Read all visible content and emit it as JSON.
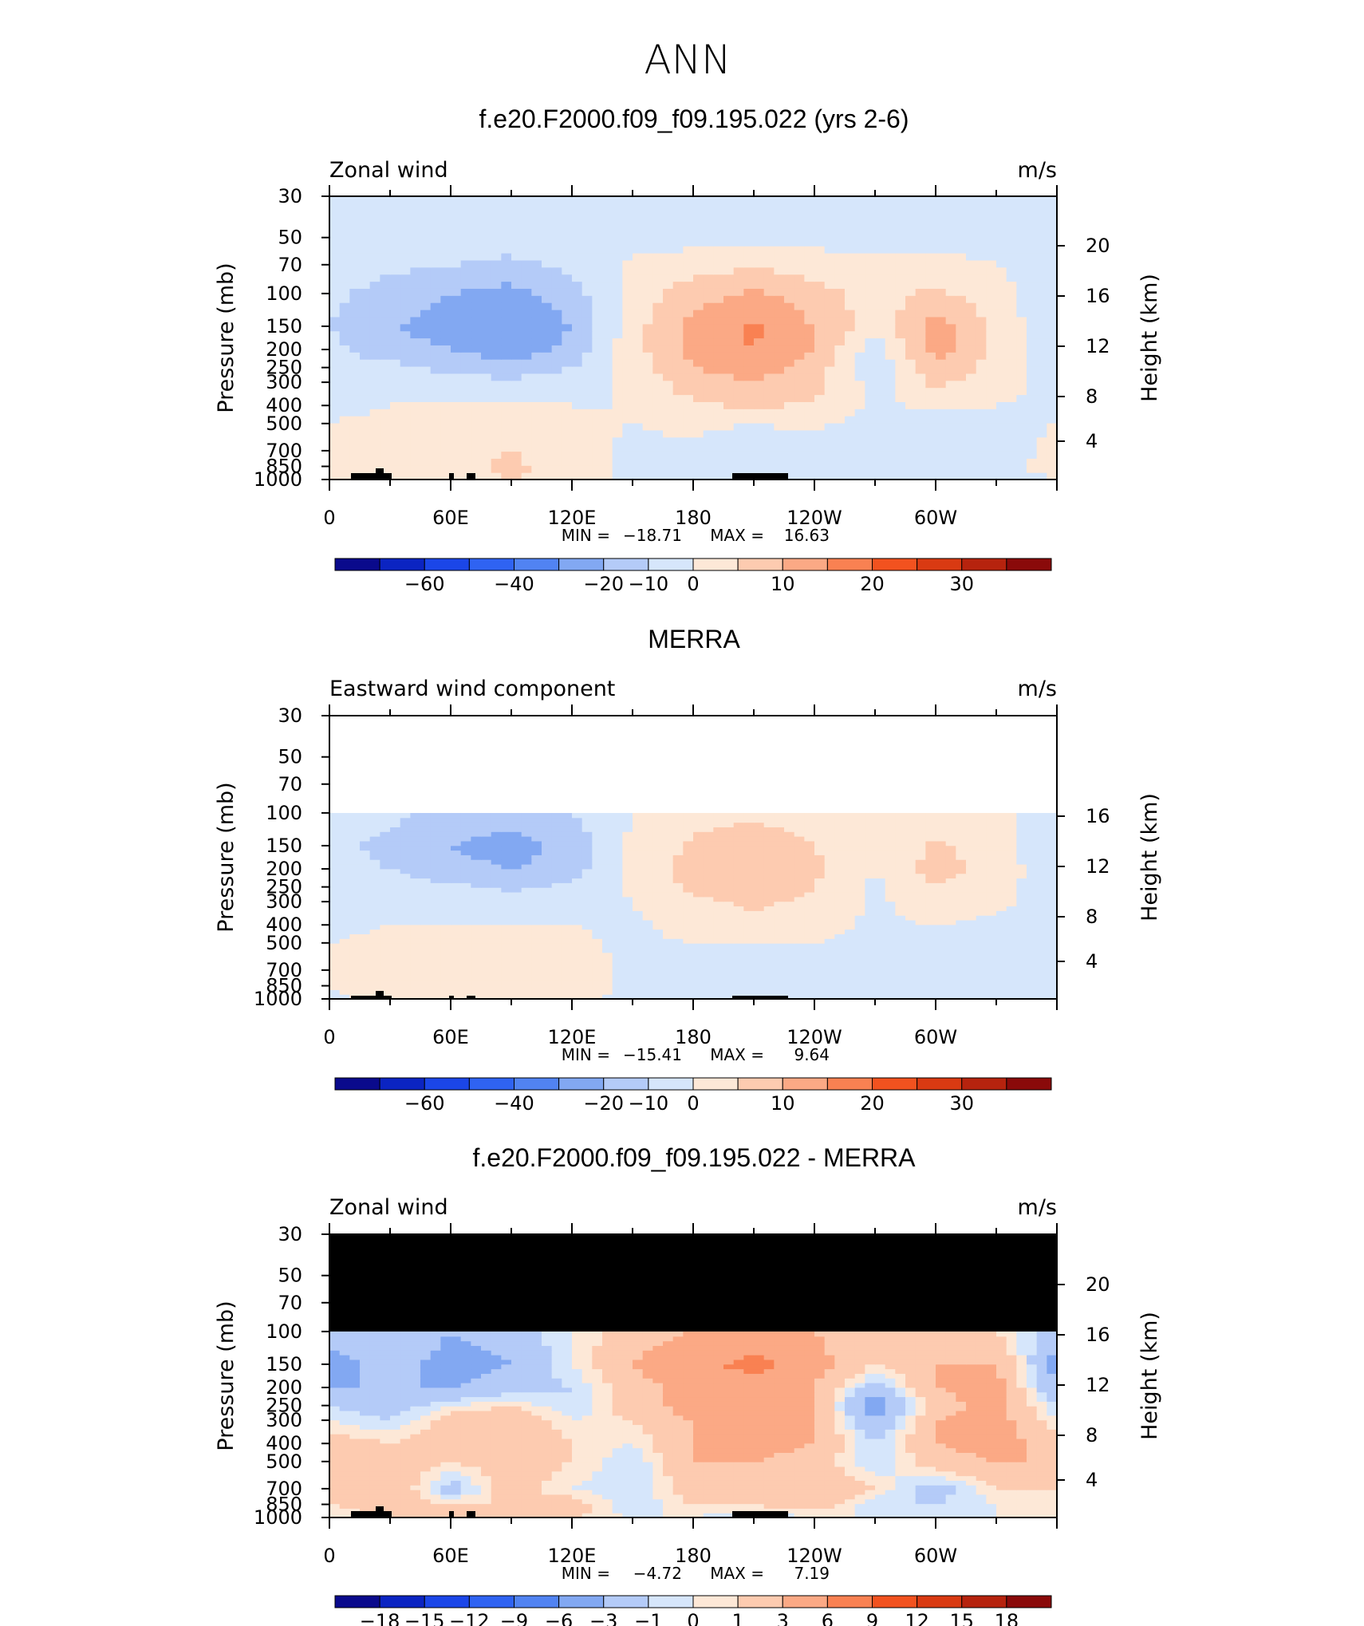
{
  "figure": {
    "title": "ANN"
  },
  "colorbar_colors": [
    "#0a0a8c",
    "#0b24c2",
    "#1b46e8",
    "#2f63f2",
    "#5183f2",
    "#82a8f2",
    "#b4cbf8",
    "#d6e6fb",
    "#fde8d7",
    "#fdcbb0",
    "#fba985",
    "#f98152",
    "#f2521f",
    "#d93a12",
    "#b6230e",
    "#8a0a0a"
  ],
  "chart_data": [
    {
      "type": "heatmap",
      "title": "f.e20.F2000.f09_f09.195.022 (yrs 2-6)",
      "left_label": "Zonal wind",
      "right_label": "m/s",
      "ylabel": "Pressure (mb)",
      "ylabel_right": "Height (km)",
      "x_ticks": [
        "0",
        "60E",
        "120E",
        "180",
        "120W",
        "60W"
      ],
      "y_ticks": [
        "30",
        "50",
        "70",
        "100",
        "150",
        "200",
        "250",
        "300",
        "400",
        "500",
        "700",
        "850",
        "1000"
      ],
      "height_ticks": [
        "20",
        "16",
        "12",
        "8",
        "4"
      ],
      "stats": {
        "min_label": "MIN =",
        "min": "−18.71",
        "max_label": "MAX =",
        "max": "16.63"
      },
      "colorbar_labels": [
        "−60",
        "−40",
        "−20",
        "−10",
        "0",
        "10",
        "20",
        "30"
      ],
      "field": {
        "x_lon": [
          0,
          30,
          60,
          90,
          120,
          150,
          180,
          210,
          240,
          270,
          300,
          330,
          360
        ],
        "p_levels": [
          1000,
          850,
          700,
          500,
          400,
          300,
          250,
          200,
          150,
          100,
          70,
          50,
          30
        ],
        "values": [
          [
            0,
            2,
            3,
            5,
            2,
            -1,
            -2,
            -2,
            -1,
            -1,
            -2,
            -1,
            0
          ],
          [
            1,
            3,
            4,
            6,
            3,
            -1,
            -2,
            -4,
            -2,
            -2,
            -3,
            -1,
            1
          ],
          [
            1,
            2,
            3,
            5,
            2,
            -1,
            -1,
            -3,
            -2,
            -3,
            -4,
            -2,
            1
          ],
          [
            0,
            1,
            1,
            3,
            1,
            0,
            1,
            0,
            1,
            -2,
            -3,
            -1,
            0
          ],
          [
            -1,
            0,
            1,
            1,
            0,
            0,
            4,
            6,
            4,
            -1,
            1,
            0,
            -1
          ],
          [
            -2,
            -2,
            -3,
            -4,
            -2,
            1,
            8,
            10,
            7,
            -2,
            6,
            2,
            -2
          ],
          [
            -3,
            -4,
            -6,
            -8,
            -5,
            2,
            10,
            12,
            8,
            -4,
            9,
            3,
            -3
          ],
          [
            -4,
            -7,
            -10,
            -13,
            -8,
            3,
            12,
            15,
            10,
            -3,
            12,
            4,
            -4
          ],
          [
            -5,
            -9,
            -14,
            -17,
            -10,
            3,
            12,
            16,
            10,
            2,
            12,
            4,
            -5
          ],
          [
            -4,
            -7,
            -10,
            -12,
            -7,
            2,
            8,
            11,
            7,
            3,
            6,
            2,
            -4
          ],
          [
            -2,
            -4,
            -5,
            -6,
            -4,
            1,
            3,
            4,
            3,
            1,
            2,
            0,
            -2
          ],
          [
            -2,
            -3,
            -3,
            -3,
            -3,
            -2,
            -2,
            -2,
            -2,
            -2,
            -2,
            -2,
            -2
          ],
          [
            -3,
            -3,
            -3,
            -3,
            -3,
            -3,
            -3,
            -3,
            -3,
            -3,
            -3,
            -3,
            -3
          ]
        ]
      }
    },
    {
      "type": "heatmap",
      "title": "MERRA",
      "left_label": "Eastward wind component",
      "right_label": "m/s",
      "ylabel": "Pressure (mb)",
      "ylabel_right": "Height (km)",
      "x_ticks": [
        "0",
        "60E",
        "120E",
        "180",
        "120W",
        "60W"
      ],
      "y_ticks": [
        "30",
        "50",
        "70",
        "100",
        "150",
        "200",
        "250",
        "300",
        "400",
        "500",
        "700",
        "850",
        "1000"
      ],
      "height_ticks": [
        "16",
        "12",
        "8",
        "4"
      ],
      "stats": {
        "min_label": "MIN =",
        "min": "−15.41",
        "max_label": "MAX =",
        "max": "9.64"
      },
      "colorbar_labels": [
        "−60",
        "−40",
        "−20",
        "−10",
        "0",
        "10",
        "20",
        "30"
      ],
      "field": {
        "x_lon": [
          0,
          30,
          60,
          90,
          120,
          150,
          180,
          210,
          240,
          270,
          300,
          330,
          360
        ],
        "p_levels": [
          1000,
          850,
          700,
          500,
          400,
          300,
          250,
          200,
          150,
          100
        ],
        "values": [
          [
            -1,
            1,
            2,
            3,
            1,
            -1,
            -2,
            -2,
            -2,
            -2,
            -2,
            -1,
            -1
          ],
          [
            0,
            2,
            3,
            4,
            2,
            -1,
            -2,
            -3,
            -2,
            -2,
            -3,
            -1,
            0
          ],
          [
            0,
            1,
            2,
            3,
            2,
            -1,
            -1,
            -2,
            -2,
            -2,
            -3,
            -2,
            0
          ],
          [
            0,
            1,
            1,
            2,
            1,
            -1,
            0,
            0,
            0,
            -2,
            -2,
            -1,
            0
          ],
          [
            -1,
            0,
            0,
            0,
            0,
            -1,
            2,
            3,
            2,
            -1,
            0,
            -1,
            -1
          ],
          [
            -2,
            -1,
            -2,
            -3,
            -2,
            0,
            4,
            6,
            4,
            -1,
            3,
            1,
            -2
          ],
          [
            -3,
            -3,
            -4,
            -6,
            -4,
            1,
            6,
            8,
            5,
            -1,
            5,
            2,
            -3
          ],
          [
            -4,
            -5,
            -8,
            -10,
            -7,
            1,
            7,
            9,
            6,
            0,
            7,
            3,
            -4
          ],
          [
            -4,
            -6,
            -10,
            -13,
            -8,
            1,
            6,
            8,
            5,
            1,
            6,
            2,
            -4
          ],
          [
            -3,
            -4,
            -6,
            -7,
            -5,
            0,
            3,
            4,
            3,
            1,
            2,
            1,
            -3
          ]
        ]
      }
    },
    {
      "type": "heatmap",
      "title": "f.e20.F2000.f09_f09.195.022 - MERRA",
      "left_label": "Zonal wind",
      "right_label": "m/s",
      "ylabel": "Pressure (mb)",
      "ylabel_right": "Height (km)",
      "x_ticks": [
        "0",
        "60E",
        "120E",
        "180",
        "120W",
        "60W"
      ],
      "y_ticks": [
        "30",
        "50",
        "70",
        "100",
        "150",
        "200",
        "250",
        "300",
        "400",
        "500",
        "700",
        "850",
        "1000"
      ],
      "height_ticks": [
        "20",
        "16",
        "12",
        "8",
        "4"
      ],
      "stats": {
        "min_label": "MIN =",
        "min": "−4.72",
        "max_label": "MAX =",
        "max": "7.19"
      },
      "colorbar_labels": [
        "−18",
        "−15",
        "−12",
        "−9",
        "−6",
        "−3",
        "−1",
        "0",
        "1",
        "3",
        "6",
        "9",
        "12",
        "15",
        "18"
      ],
      "field": {
        "x_lon": [
          0,
          30,
          60,
          90,
          120,
          150,
          180,
          210,
          240,
          270,
          300,
          330,
          360
        ],
        "p_levels": [
          1000,
          850,
          700,
          500,
          400,
          300,
          250,
          200,
          150,
          100
        ],
        "values": [
          [
            0,
            1,
            2,
            2,
            1,
            0,
            0,
            -1,
            0,
            0,
            0,
            0,
            0
          ],
          [
            1,
            2,
            1,
            1,
            2,
            -1,
            1,
            1,
            2,
            -1,
            -1,
            0,
            1
          ],
          [
            1,
            3,
            -2,
            2,
            0,
            -1,
            2,
            2,
            3,
            1,
            -2,
            1,
            1
          ],
          [
            3,
            2,
            1,
            2,
            1,
            -1,
            3,
            3,
            2,
            -1,
            2,
            3,
            3
          ],
          [
            2,
            1,
            2,
            3,
            1,
            0,
            3,
            4,
            3,
            -1,
            3,
            4,
            2
          ],
          [
            0,
            -1,
            2,
            3,
            0,
            1,
            3,
            4,
            3,
            -3,
            3,
            4,
            0
          ],
          [
            -1,
            -2,
            0,
            1,
            -1,
            2,
            4,
            4,
            3,
            -5,
            2,
            4,
            -1
          ],
          [
            -3,
            -3,
            -3,
            -2,
            -1,
            2,
            4,
            5,
            3,
            -2,
            3,
            4,
            -3
          ],
          [
            -4,
            -2,
            -4,
            -3,
            0,
            3,
            5,
            7,
            4,
            1,
            3,
            3,
            -4
          ],
          [
            -2,
            -1,
            -3,
            -2,
            0,
            2,
            3,
            4,
            3,
            1,
            2,
            1,
            -2
          ]
        ]
      }
    }
  ]
}
